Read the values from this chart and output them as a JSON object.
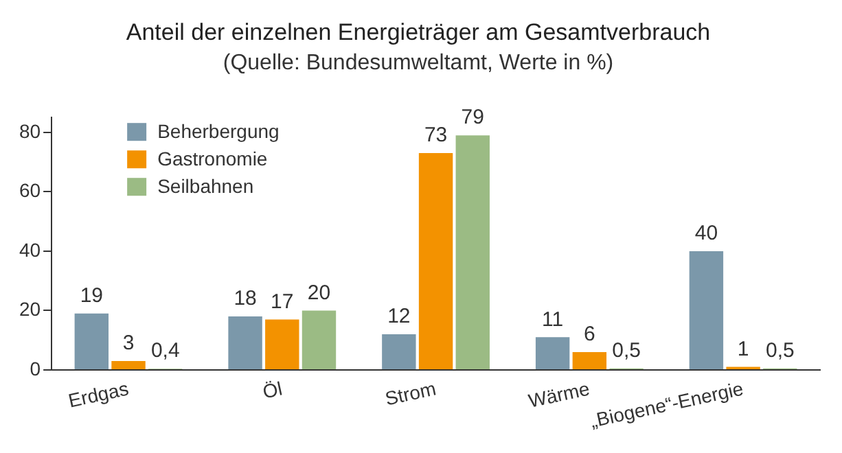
{
  "chart_data": {
    "type": "bar",
    "title": "Anteil der einzelnen Energieträger am Gesamtverbrauch",
    "subtitle": "(Quelle: Bundesumweltamt, Werte in %)",
    "categories": [
      "Erdgas",
      "Öl",
      "Strom",
      "Wärme",
      "„Biogene“-Energie"
    ],
    "series": [
      {
        "name": "Beherbergung",
        "color": "#7b98aa",
        "values": [
          19,
          18,
          12,
          11,
          40
        ],
        "value_labels": [
          "19",
          "18",
          "12",
          "11",
          "40"
        ]
      },
      {
        "name": "Gastronomie",
        "color": "#f39200",
        "values": [
          3,
          17,
          73,
          6,
          1
        ],
        "value_labels": [
          "3",
          "17",
          "73",
          "6",
          "1"
        ]
      },
      {
        "name": "Seilbahnen",
        "color": "#9bbb84",
        "values": [
          0.4,
          20,
          79,
          0.5,
          0.5
        ],
        "value_labels": [
          "0,4",
          "20",
          "79",
          "0,5",
          "0,5"
        ]
      }
    ],
    "ylim": [
      0,
      85
    ],
    "yticks": [
      0,
      20,
      40,
      60,
      80
    ],
    "grid": false,
    "legend": "top left"
  }
}
